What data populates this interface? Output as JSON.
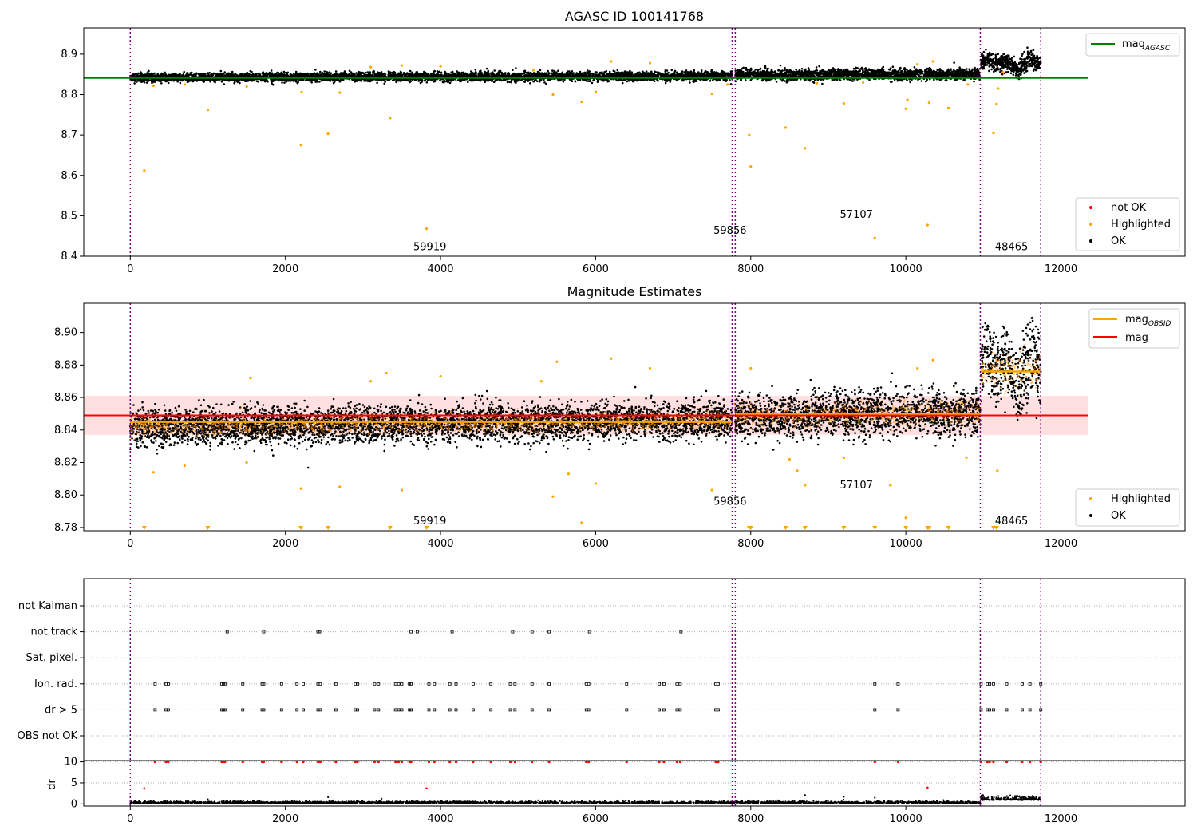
{
  "chart_data": [
    {
      "type": "scatter",
      "title": "AGASC ID 100141768",
      "xlim": [
        -600,
        13600
      ],
      "ylim": [
        8.4,
        8.965
      ],
      "xticks": [
        0,
        2000,
        4000,
        6000,
        8000,
        10000,
        12000
      ],
      "yticks": [
        8.4,
        8.5,
        8.6,
        8.7,
        8.8,
        8.9
      ],
      "ytick_labels": [
        "8.4",
        "8.5",
        "8.6",
        "8.7",
        "8.8",
        "8.9"
      ],
      "legend_top": [
        {
          "label": "mag",
          "sub": "AGASC",
          "color": "#008000",
          "kind": "line"
        }
      ],
      "legend_bottom": [
        {
          "label": "not OK",
          "color": "#ff0000",
          "kind": "dot"
        },
        {
          "label": "Highlighted",
          "color": "#ffa500",
          "kind": "dot"
        },
        {
          "label": "OK",
          "color": "#000000",
          "kind": "dot"
        }
      ],
      "hlines": [
        {
          "name": "mag_AGASC",
          "y": 8.841,
          "x": [
            -600,
            12350
          ],
          "color": "#008000"
        }
      ],
      "ok_bands": [
        {
          "x": [
            0,
            7760
          ],
          "center_start": 8.842,
          "center_end": 8.846,
          "halfwidth": 0.01
        },
        {
          "x": [
            7800,
            10960
          ],
          "center_start": 8.848,
          "center_end": 8.851,
          "halfwidth": 0.012
        },
        {
          "x": [
            10960,
            11740
          ],
          "center_start": 8.877,
          "center_end": 8.877,
          "halfwidth": 0.02
        }
      ],
      "highlighted_points": [
        [
          180,
          8.612
        ],
        [
          1000,
          8.762
        ],
        [
          2200,
          8.675
        ],
        [
          2550,
          8.703
        ],
        [
          3350,
          8.742
        ],
        [
          3820,
          8.468
        ],
        [
          5450,
          8.8
        ],
        [
          5820,
          8.782
        ],
        [
          6000,
          8.807
        ],
        [
          7500,
          8.802
        ],
        [
          7980,
          8.7
        ],
        [
          8000,
          8.622
        ],
        [
          8450,
          8.718
        ],
        [
          8700,
          8.667
        ],
        [
          9200,
          8.778
        ],
        [
          9600,
          8.445
        ],
        [
          10000,
          8.765
        ],
        [
          10020,
          8.787
        ],
        [
          10300,
          8.78
        ],
        [
          10550,
          8.767
        ],
        [
          10280,
          8.477
        ],
        [
          11130,
          8.705
        ],
        [
          11170,
          8.777
        ],
        [
          11190,
          8.815
        ],
        [
          300,
          8.822
        ],
        [
          700,
          8.825
        ],
        [
          1500,
          8.82
        ],
        [
          2700,
          8.805
        ],
        [
          2210,
          8.806
        ],
        [
          3100,
          8.868
        ],
        [
          3500,
          8.872
        ],
        [
          4000,
          8.87
        ],
        [
          5200,
          8.86
        ],
        [
          6200,
          8.882
        ],
        [
          6700,
          8.878
        ],
        [
          7700,
          8.825
        ],
        [
          8850,
          8.828
        ],
        [
          9450,
          8.83
        ],
        [
          10800,
          8.825
        ],
        [
          10350,
          8.882
        ],
        [
          10150,
          8.875
        ],
        [
          11250,
          8.855
        ]
      ],
      "obsid_labels": [
        {
          "text": "59919",
          "x": 3650,
          "y": 8.415
        },
        {
          "text": "59856",
          "x": 7520,
          "y": 8.455
        },
        {
          "text": "57107",
          "x": 9150,
          "y": 8.495
        },
        {
          "text": "48465",
          "x": 11150,
          "y": 8.415
        }
      ],
      "vlines": [
        0,
        7760,
        7800,
        10960,
        11740
      ]
    },
    {
      "type": "scatter",
      "title": "Magnitude Estimates",
      "xlim": [
        -600,
        13600
      ],
      "ylim": [
        8.778,
        8.918
      ],
      "xticks": [
        0,
        2000,
        4000,
        6000,
        8000,
        10000,
        12000
      ],
      "yticks": [
        8.78,
        8.8,
        8.82,
        8.84,
        8.86,
        8.88,
        8.9
      ],
      "ytick_labels": [
        "8.78",
        "8.80",
        "8.82",
        "8.84",
        "8.86",
        "8.88",
        "8.90"
      ],
      "legend_top": [
        {
          "label": "mag",
          "sub": "OBSID",
          "color": "#ffa500",
          "kind": "line"
        },
        {
          "label": "mag",
          "sub": "",
          "color": "#ff0000",
          "kind": "line"
        }
      ],
      "legend_bottom": [
        {
          "label": "Highlighted",
          "color": "#ffa500",
          "kind": "dot"
        },
        {
          "label": "OK",
          "color": "#000000",
          "kind": "dot"
        }
      ],
      "mag_band": {
        "y": 8.849,
        "lo": 8.837,
        "hi": 8.861,
        "x": [
          -600,
          12350
        ]
      },
      "obsid_means": [
        {
          "x": [
            0,
            7760
          ],
          "y": 8.845
        },
        {
          "x": [
            7760,
            7800
          ],
          "y": 8.856
        },
        {
          "x": [
            7800,
            10960
          ],
          "y": 8.85
        },
        {
          "x": [
            10960,
            11740
          ],
          "y": 8.876
        }
      ],
      "ok_bands": [
        {
          "x": [
            0,
            7760
          ],
          "center_start": 8.842,
          "center_end": 8.846,
          "halfwidth": 0.01
        },
        {
          "x": [
            7800,
            10960
          ],
          "center_start": 8.848,
          "center_end": 8.851,
          "halfwidth": 0.012
        },
        {
          "x": [
            10960,
            11740
          ],
          "center_start": 8.877,
          "center_end": 8.877,
          "halfwidth": 0.02
        }
      ],
      "highlighted_points": [
        [
          300,
          8.814
        ],
        [
          700,
          8.818
        ],
        [
          1500,
          8.82
        ],
        [
          2200,
          8.804
        ],
        [
          2700,
          8.805
        ],
        [
          3500,
          8.803
        ],
        [
          5450,
          8.799
        ],
        [
          5650,
          8.813
        ],
        [
          5820,
          8.783
        ],
        [
          6000,
          8.807
        ],
        [
          7500,
          8.803
        ],
        [
          8500,
          8.822
        ],
        [
          8600,
          8.815
        ],
        [
          8700,
          8.806
        ],
        [
          9200,
          8.823
        ],
        [
          9800,
          8.806
        ],
        [
          10000,
          8.786
        ],
        [
          10780,
          8.823
        ],
        [
          11180,
          8.815
        ],
        [
          1550,
          8.872
        ],
        [
          3300,
          8.875
        ],
        [
          4000,
          8.873
        ],
        [
          5500,
          8.882
        ],
        [
          6200,
          8.884
        ],
        [
          6700,
          8.878
        ],
        [
          8000,
          8.878
        ],
        [
          10350,
          8.883
        ],
        [
          10150,
          8.878
        ],
        [
          3100,
          8.87
        ],
        [
          5300,
          8.87
        ]
      ],
      "clipped_low_x": [
        180,
        1000,
        2200,
        2550,
        3350,
        3820,
        7980,
        8000,
        8450,
        8700,
        9200,
        9600,
        10000,
        10280,
        10300,
        10550,
        11130,
        11170
      ],
      "obsid_labels": [
        {
          "text": "59919",
          "x": 3650,
          "y": 8.782
        },
        {
          "text": "59856",
          "x": 7520,
          "y": 8.794
        },
        {
          "text": "57107",
          "x": 9150,
          "y": 8.804
        },
        {
          "text": "48465",
          "x": 11150,
          "y": 8.782
        }
      ],
      "vlines": [
        0,
        7760,
        7800,
        10960,
        11740
      ]
    },
    {
      "type": "scatter",
      "title": "",
      "xlim": [
        -600,
        13600
      ],
      "categories": [
        "not Kalman",
        "not track",
        "Sat. pixel.",
        "Ion. rad.",
        "dr > 5",
        "OBS not OK"
      ],
      "flag_points": {
        "not track": [
          1250,
          1720,
          2420,
          2440,
          3620,
          3700,
          4150,
          4930,
          5180,
          5400,
          5920,
          7100
        ],
        "Ion. rad.": [
          320,
          460,
          490,
          1180,
          1200,
          1220,
          1450,
          1700,
          1720,
          1950,
          2150,
          2230,
          2420,
          2450,
          2650,
          2900,
          2930,
          3150,
          3200,
          3420,
          3460,
          3500,
          3600,
          3620,
          3850,
          3920,
          4120,
          4200,
          4420,
          4650,
          4900,
          4960,
          5180,
          5400,
          5880,
          5910,
          6400,
          6820,
          6880,
          7050,
          7090,
          7550,
          7580,
          9600,
          9900,
          10970,
          11050,
          11080,
          11130,
          11300,
          11500,
          11600,
          11740
        ],
        "dr > 5": [
          320,
          460,
          490,
          1180,
          1200,
          1220,
          1450,
          1700,
          1720,
          1950,
          2150,
          2230,
          2420,
          2450,
          2650,
          2900,
          2930,
          3150,
          3200,
          3420,
          3460,
          3500,
          3600,
          3620,
          3850,
          3920,
          4120,
          4200,
          4420,
          4650,
          4900,
          4960,
          5180,
          5400,
          5880,
          5910,
          6400,
          6820,
          6880,
          7050,
          7090,
          7550,
          7580,
          9600,
          9900,
          10970,
          11050,
          11080,
          11130,
          11300,
          11500,
          11600,
          11740
        ]
      },
      "vlines": [
        0,
        7760,
        7800,
        10960,
        11740
      ]
    },
    {
      "type": "scatter",
      "title": "",
      "ylabel": "dr",
      "xlim": [
        -600,
        13600
      ],
      "ylim": [
        -0.5,
        10.3
      ],
      "xticks": [
        0,
        2000,
        4000,
        6000,
        8000,
        10000,
        12000
      ],
      "yticks": [
        0,
        5,
        10
      ],
      "ytick_labels": [
        "0",
        "5",
        "10"
      ],
      "red_at_10_x": [
        320,
        460,
        490,
        1180,
        1200,
        1220,
        1450,
        1700,
        1720,
        1950,
        2150,
        2230,
        2420,
        2450,
        2650,
        2900,
        2930,
        3150,
        3200,
        3420,
        3460,
        3500,
        3600,
        3620,
        3850,
        3920,
        4120,
        4200,
        4420,
        4650,
        4900,
        4960,
        5180,
        5400,
        5880,
        5910,
        6400,
        6820,
        6880,
        7050,
        7090,
        7550,
        7580,
        9600,
        9900,
        10970,
        11050,
        11080,
        11130,
        11300,
        11500,
        11600,
        11740
      ],
      "red_scatter": [
        [
          180,
          3.7
        ],
        [
          3820,
          3.7
        ],
        [
          10280,
          3.9
        ]
      ],
      "black_bands": [
        {
          "x": [
            0,
            10960
          ],
          "base": 0.15,
          "spread": 0.45
        },
        {
          "x": [
            10960,
            11740
          ],
          "base": 0.9,
          "spread": 0.8
        }
      ],
      "black_outliers": [
        [
          1000,
          1.1
        ],
        [
          2550,
          1.6
        ],
        [
          8700,
          2.1
        ],
        [
          9200,
          1.7
        ],
        [
          9600,
          1.5
        ]
      ],
      "vlines": [
        0,
        7760,
        7800,
        10960,
        11740
      ]
    }
  ]
}
